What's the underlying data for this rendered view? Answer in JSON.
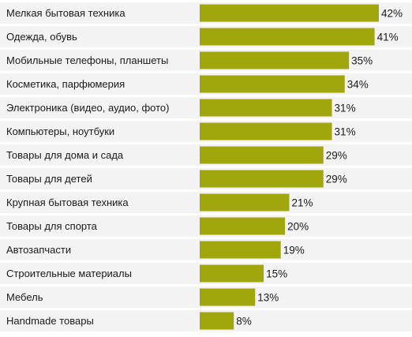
{
  "chart_data": {
    "type": "bar",
    "orientation": "horizontal",
    "bar_color": "#a0a70c",
    "row_background": "#f3f3f3",
    "value_suffix": "%",
    "xlim": [
      0,
      42
    ],
    "grid": false,
    "categories": [
      "Мелкая бытовая техника",
      "Одежда, обувь",
      "Мобильные телефоны, планшеты",
      "Косметика, парфюмерия",
      "Электроника (видео, аудио, фото)",
      "Компьютеры, ноутбуки",
      "Товары для дома и сада",
      "Товары для детей",
      "Крупная бытовая техника",
      "Товары для спорта",
      "Автозапчасти",
      "Строительные материалы",
      "Мебель",
      "Handmade товары"
    ],
    "values": [
      42,
      41,
      35,
      34,
      31,
      31,
      29,
      29,
      21,
      20,
      19,
      15,
      13,
      8
    ],
    "value_labels": [
      "42%",
      "41%",
      "35%",
      "34%",
      "31%",
      "31%",
      "29%",
      "29%",
      "21%",
      "20%",
      "19%",
      "15%",
      "13%",
      "8%"
    ]
  }
}
